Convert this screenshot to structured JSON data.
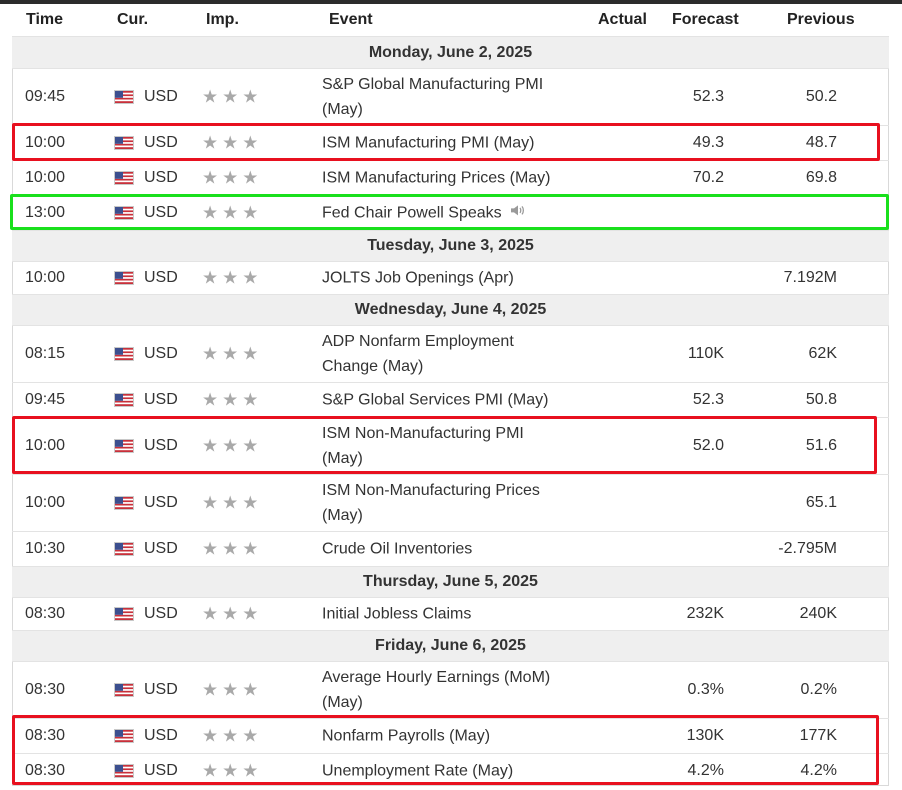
{
  "columns": {
    "time": "Time",
    "currency": "Cur.",
    "importance": "Imp.",
    "event": "Event",
    "actual": "Actual",
    "forecast": "Forecast",
    "previous": "Previous"
  },
  "days": [
    {
      "label": "Monday, June 2, 2025"
    },
    {
      "label": "Tuesday, June 3, 2025"
    },
    {
      "label": "Wednesday, June 4, 2025"
    },
    {
      "label": "Thursday, June 5, 2025"
    },
    {
      "label": "Friday, June 6, 2025"
    }
  ],
  "events": [
    {
      "time": "09:45",
      "currency": "USD",
      "event": "S&P Global Manufacturing PMI (May)",
      "forecast": "52.3",
      "previous": "50.2"
    },
    {
      "time": "10:00",
      "currency": "USD",
      "event": "ISM Manufacturing PMI (May)",
      "forecast": "49.3",
      "previous": "48.7"
    },
    {
      "time": "10:00",
      "currency": "USD",
      "event": "ISM Manufacturing Prices (May)",
      "forecast": "70.2",
      "previous": "69.8"
    },
    {
      "time": "13:00",
      "currency": "USD",
      "event": "Fed Chair Powell Speaks",
      "forecast": "",
      "previous": ""
    },
    {
      "time": "10:00",
      "currency": "USD",
      "event": "JOLTS Job Openings (Apr)",
      "forecast": "",
      "previous": "7.192M"
    },
    {
      "time": "08:15",
      "currency": "USD",
      "event": "ADP Nonfarm Employment Change (May)",
      "forecast": "110K",
      "previous": "62K"
    },
    {
      "time": "09:45",
      "currency": "USD",
      "event": "S&P Global Services PMI (May)",
      "forecast": "52.3",
      "previous": "50.8"
    },
    {
      "time": "10:00",
      "currency": "USD",
      "event": "ISM Non-Manufacturing PMI (May)",
      "forecast": "52.0",
      "previous": "51.6"
    },
    {
      "time": "10:00",
      "currency": "USD",
      "event": "ISM Non-Manufacturing Prices (May)",
      "forecast": "",
      "previous": "65.1"
    },
    {
      "time": "10:30",
      "currency": "USD",
      "event": "Crude Oil Inventories",
      "forecast": "",
      "previous": "-2.795M"
    },
    {
      "time": "08:30",
      "currency": "USD",
      "event": "Initial Jobless Claims",
      "forecast": "232K",
      "previous": "240K"
    },
    {
      "time": "08:30",
      "currency": "USD",
      "event": "Average Hourly Earnings (MoM) (May)",
      "forecast": "0.3%",
      "previous": "0.2%"
    },
    {
      "time": "08:30",
      "currency": "USD",
      "event": "Nonfarm Payrolls (May)",
      "forecast": "130K",
      "previous": "177K"
    },
    {
      "time": "08:30",
      "currency": "USD",
      "event": "Unemployment Rate (May)",
      "forecast": "4.2%",
      "previous": "4.2%"
    }
  ],
  "importance_stars": 3,
  "icons": {
    "flag": "us-flag-icon",
    "star": "star-icon",
    "speaker": "speaker-icon"
  },
  "colors": {
    "highlight_red": "#e8101f",
    "highlight_green": "#19e01c",
    "star_gray": "#a9a9a9",
    "day_row_bg": "#efefef"
  }
}
